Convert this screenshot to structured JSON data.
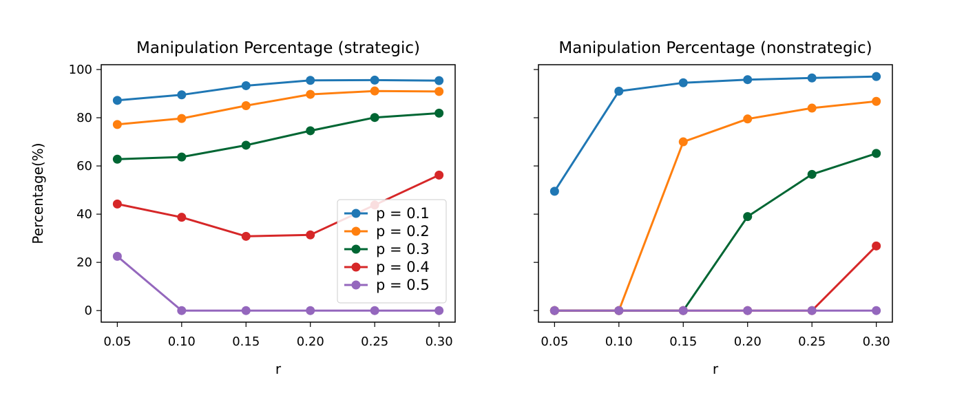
{
  "chart_data": [
    {
      "type": "line",
      "title": "Manipulation Percentage (strategic)",
      "xlabel": "r",
      "ylabel": "Percentage(%)",
      "x": [
        0.05,
        0.1,
        0.15,
        0.2,
        0.25,
        0.3
      ],
      "x_tick_labels": [
        "0.05",
        "0.10",
        "0.15",
        "0.20",
        "0.25",
        "0.30"
      ],
      "y_ticks": [
        0,
        20,
        40,
        60,
        80,
        100
      ],
      "y_tick_labels": [
        "0",
        "20",
        "40",
        "60",
        "80",
        "100"
      ],
      "xlim": [
        0.0375,
        0.3125
      ],
      "ylim": [
        -4.8,
        102
      ],
      "grid": false,
      "legend": "lower-right",
      "series": [
        {
          "name": "p = 0.1",
          "color": "#1f77b4",
          "values": [
            87.2,
            89.5,
            93.3,
            95.5,
            95.6,
            95.4
          ]
        },
        {
          "name": "p = 0.2",
          "color": "#ff7f0e",
          "values": [
            77.2,
            79.7,
            85.0,
            89.7,
            91.1,
            90.9
          ]
        },
        {
          "name": "p = 0.3",
          "color": "#006633",
          "values": [
            62.8,
            63.7,
            68.6,
            74.6,
            80.1,
            81.9
          ]
        },
        {
          "name": "p = 0.4",
          "color": "#d62728",
          "values": [
            44.2,
            38.7,
            30.8,
            31.4,
            43.8,
            56.2
          ]
        },
        {
          "name": "p = 0.5",
          "color": "#9467bd",
          "values": [
            22.5,
            0,
            0,
            0,
            0,
            0
          ]
        }
      ]
    },
    {
      "type": "line",
      "title": "Manipulation Percentage (nonstrategic)",
      "xlabel": "r",
      "ylabel": "",
      "x": [
        0.05,
        0.1,
        0.15,
        0.2,
        0.25,
        0.3
      ],
      "x_tick_labels": [
        "0.05",
        "0.10",
        "0.15",
        "0.20",
        "0.25",
        "0.30"
      ],
      "y_ticks": [
        0,
        20,
        40,
        60,
        80,
        100
      ],
      "xlim": [
        0.0375,
        0.3125
      ],
      "ylim": [
        -4.8,
        102
      ],
      "grid": false,
      "legend": "none",
      "series": [
        {
          "name": "p = 0.1",
          "color": "#1f77b4",
          "values": [
            49.5,
            91.0,
            94.5,
            95.8,
            96.5,
            97.1
          ]
        },
        {
          "name": "p = 0.2",
          "color": "#ff7f0e",
          "values": [
            0,
            0,
            70.0,
            79.5,
            84.0,
            86.8
          ]
        },
        {
          "name": "p = 0.3",
          "color": "#006633",
          "values": [
            0,
            0,
            0,
            39.0,
            56.5,
            65.2
          ]
        },
        {
          "name": "p = 0.4",
          "color": "#d62728",
          "values": [
            0,
            0,
            0,
            0,
            0,
            26.8
          ]
        },
        {
          "name": "p = 0.5",
          "color": "#9467bd",
          "values": [
            0,
            0,
            0,
            0,
            0,
            0
          ]
        }
      ]
    }
  ]
}
